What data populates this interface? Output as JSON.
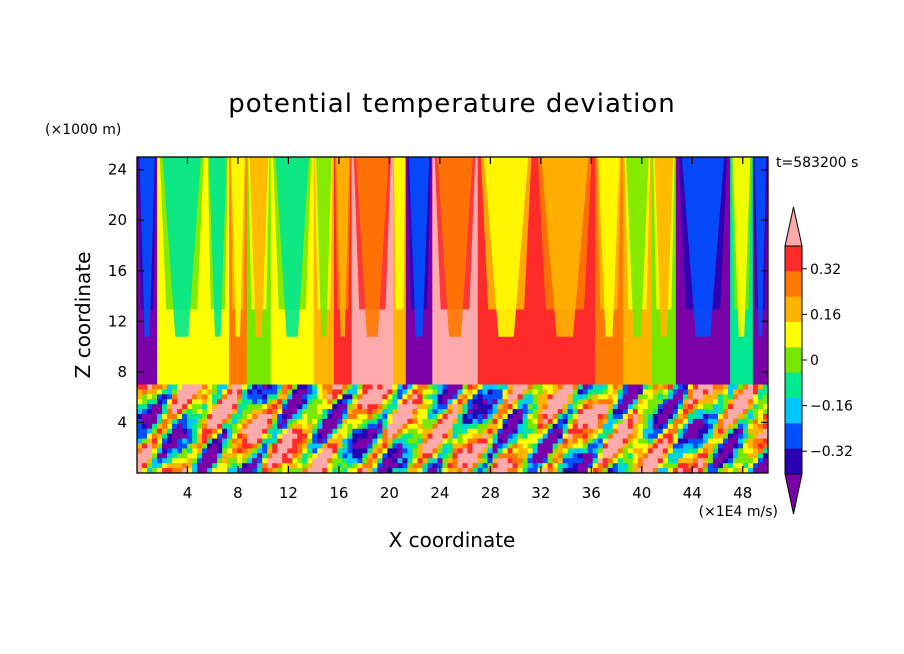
{
  "chart_data": {
    "type": "heatmap",
    "title": "potential temperature deviation",
    "xlabel": "X coordinate",
    "ylabel": "Z coordinate",
    "x_unit": "(×1E4 m/s)",
    "y_unit": "(×1000 m)",
    "time_label": "t=583200 s",
    "xlim": [
      0,
      50
    ],
    "ylim": [
      0,
      25
    ],
    "x_ticks": [
      4,
      8,
      12,
      16,
      20,
      24,
      28,
      32,
      36,
      40,
      44,
      48
    ],
    "y_ticks": [
      4,
      8,
      12,
      16,
      20,
      24
    ],
    "colorbar": {
      "levels": [
        -0.4,
        -0.32,
        -0.24,
        -0.16,
        -0.08,
        0,
        0.08,
        0.16,
        0.24,
        0.32,
        0.4
      ],
      "labels": [
        "0.32",
        "0.16",
        "0",
        "−0.16",
        "−0.32"
      ],
      "label_values": [
        0.32,
        0.16,
        0,
        -0.16,
        -0.32
      ],
      "colors": [
        "#7a00a8",
        "#2a00b4",
        "#0050ff",
        "#00c8ff",
        "#00e890",
        "#78e800",
        "#ffff00",
        "#ffb400",
        "#ff7800",
        "#ff2a2a",
        "#ffaaaa"
      ],
      "extend": "both"
    },
    "upper_columns": [
      {
        "x0": 0.0,
        "x1": 1.6,
        "value": -0.42
      },
      {
        "x0": 1.6,
        "x1": 5.5,
        "value": 0.0
      },
      {
        "x0": 5.5,
        "x1": 7.3,
        "value": 0.05
      },
      {
        "x0": 7.3,
        "x1": 8.7,
        "value": 0.2
      },
      {
        "x0": 8.7,
        "x1": 10.6,
        "value": -0.05
      },
      {
        "x0": 10.6,
        "x1": 14.0,
        "value": 0.06
      },
      {
        "x0": 14.0,
        "x1": 15.6,
        "value": 0.13
      },
      {
        "x0": 15.6,
        "x1": 17.0,
        "value": 0.3
      },
      {
        "x0": 17.0,
        "x1": 20.3,
        "value": 0.38
      },
      {
        "x0": 20.3,
        "x1": 21.3,
        "value": 0.1
      },
      {
        "x0": 21.3,
        "x1": 23.4,
        "value": -0.42
      },
      {
        "x0": 23.4,
        "x1": 27.0,
        "value": 0.35
      },
      {
        "x0": 27.0,
        "x1": 31.5,
        "value": 0.24
      },
      {
        "x0": 31.5,
        "x1": 36.3,
        "value": 0.3
      },
      {
        "x0": 36.3,
        "x1": 38.5,
        "value": 0.18
      },
      {
        "x0": 38.5,
        "x1": 40.8,
        "value": 0.08
      },
      {
        "x0": 40.8,
        "x1": 42.7,
        "value": -0.06
      },
      {
        "x0": 42.7,
        "x1": 47.0,
        "value": -0.42
      },
      {
        "x0": 47.0,
        "x1": 48.8,
        "value": -0.12
      },
      {
        "x0": 48.8,
        "x1": 50.0,
        "value": -0.42
      }
    ],
    "lower_layer_top": 7,
    "upper_layer_bottom": 7
  }
}
